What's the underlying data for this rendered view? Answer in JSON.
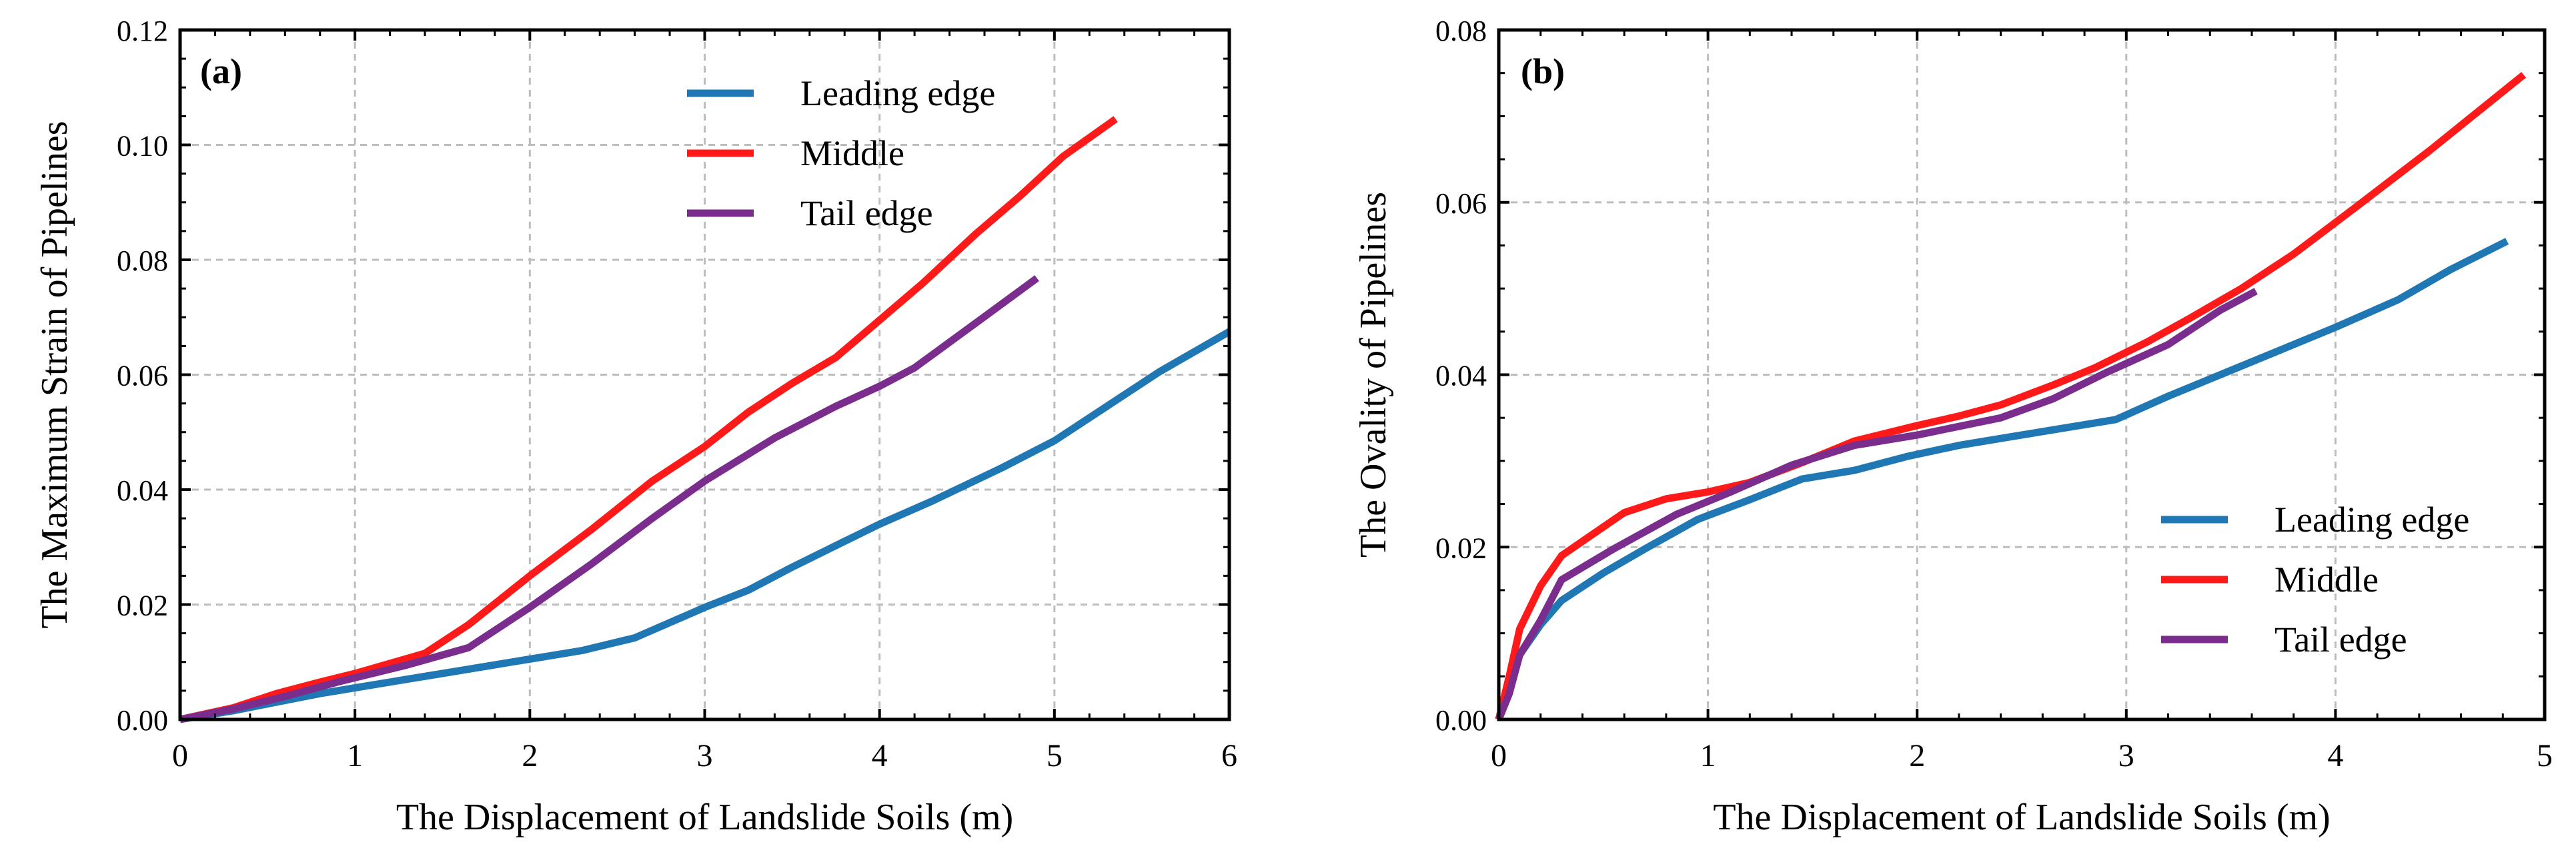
{
  "chart_data": [
    {
      "type": "line",
      "panel_label": "(a)",
      "xlabel": "The Displacement of Landslide Soils (m)",
      "ylabel": "The Maximum Strain of Pipelines",
      "xlim": [
        0,
        6
      ],
      "ylim": [
        0,
        0.12
      ],
      "xticks": [
        "0",
        "1",
        "2",
        "3",
        "4",
        "5",
        "6"
      ],
      "yticks": [
        "0.00",
        "0.02",
        "0.04",
        "0.06",
        "0.08",
        "0.10",
        "0.12"
      ],
      "grid": true,
      "legend_position": "top-center",
      "series": [
        {
          "name": "Leading edge",
          "color": "#1f77b4",
          "x": [
            0,
            0.3,
            0.55,
            0.8,
            1.0,
            1.3,
            1.6,
            2.0,
            2.3,
            2.6,
            3.0,
            3.25,
            3.5,
            3.8,
            4.0,
            4.3,
            4.7,
            5.0,
            5.3,
            5.6,
            6.0
          ],
          "y": [
            0,
            0.0015,
            0.003,
            0.0045,
            0.0055,
            0.007,
            0.0085,
            0.0105,
            0.012,
            0.0142,
            0.0195,
            0.0225,
            0.0265,
            0.031,
            0.034,
            0.038,
            0.0438,
            0.0485,
            0.0545,
            0.0605,
            0.0675
          ]
        },
        {
          "name": "Middle",
          "color": "#ff1a1a",
          "x": [
            0,
            0.3,
            0.55,
            0.8,
            1.0,
            1.4,
            1.65,
            2.0,
            2.35,
            2.7,
            3.0,
            3.25,
            3.5,
            3.75,
            4.0,
            4.25,
            4.55,
            4.8,
            5.05,
            5.35
          ],
          "y": [
            0,
            0.002,
            0.0045,
            0.0065,
            0.008,
            0.0115,
            0.0165,
            0.025,
            0.033,
            0.0415,
            0.0475,
            0.0535,
            0.0585,
            0.063,
            0.0695,
            0.076,
            0.0845,
            0.091,
            0.098,
            0.1045
          ]
        },
        {
          "name": "Tail edge",
          "color": "#7b2d8e",
          "x": [
            0,
            0.3,
            0.6,
            0.9,
            1.3,
            1.65,
            2.0,
            2.35,
            2.7,
            3.0,
            3.4,
            3.75,
            4.0,
            4.2,
            4.55,
            4.9
          ],
          "y": [
            0,
            0.0018,
            0.004,
            0.0065,
            0.0095,
            0.0125,
            0.0195,
            0.027,
            0.035,
            0.0415,
            0.049,
            0.0545,
            0.058,
            0.0612,
            0.069,
            0.0768
          ]
        }
      ]
    },
    {
      "type": "line",
      "panel_label": "(b)",
      "xlabel": "The Displacement of Landslide Soils (m)",
      "ylabel": "The Ovality of Pipelines",
      "xlim": [
        0,
        5
      ],
      "ylim": [
        0,
        0.08
      ],
      "xticks": [
        "0",
        "1",
        "2",
        "3",
        "4",
        "5"
      ],
      "yticks": [
        "0.00",
        "0.02",
        "0.04",
        "0.06",
        "0.08"
      ],
      "grid": true,
      "legend_position": "bottom-right",
      "series": [
        {
          "name": "Leading edge",
          "color": "#1f77b4",
          "x": [
            0,
            0.05,
            0.1,
            0.2,
            0.3,
            0.5,
            0.7,
            0.95,
            1.2,
            1.45,
            1.7,
            1.95,
            2.2,
            2.45,
            2.7,
            2.95,
            3.2,
            3.5,
            3.8,
            4.0,
            4.3,
            4.55,
            4.82
          ],
          "y": [
            0,
            0.004,
            0.0075,
            0.011,
            0.0138,
            0.017,
            0.0198,
            0.0232,
            0.0255,
            0.0279,
            0.0289,
            0.0305,
            0.0318,
            0.0328,
            0.0338,
            0.0348,
            0.0375,
            0.0405,
            0.0435,
            0.0455,
            0.0487,
            0.0522,
            0.0555
          ]
        },
        {
          "name": "Middle",
          "color": "#ff1a1a",
          "x": [
            0,
            0.05,
            0.1,
            0.2,
            0.3,
            0.45,
            0.6,
            0.8,
            1.0,
            1.2,
            1.45,
            1.7,
            2.0,
            2.2,
            2.4,
            2.65,
            2.85,
            3.1,
            3.3,
            3.55,
            3.8,
            4.1,
            4.45,
            4.9
          ],
          "y": [
            0,
            0.005,
            0.0105,
            0.0155,
            0.019,
            0.0215,
            0.024,
            0.0256,
            0.0264,
            0.0275,
            0.0298,
            0.0323,
            0.0341,
            0.0352,
            0.0365,
            0.0388,
            0.0408,
            0.0438,
            0.0465,
            0.05,
            0.054,
            0.0595,
            0.066,
            0.0748
          ]
        },
        {
          "name": "Tail edge",
          "color": "#7b2d8e",
          "x": [
            0,
            0.05,
            0.1,
            0.2,
            0.3,
            0.55,
            0.85,
            1.1,
            1.4,
            1.7,
            2.0,
            2.2,
            2.4,
            2.65,
            2.9,
            3.2,
            3.45,
            3.62
          ],
          "y": [
            0,
            0.003,
            0.0075,
            0.0115,
            0.0162,
            0.0198,
            0.0238,
            0.0263,
            0.0295,
            0.0318,
            0.033,
            0.034,
            0.035,
            0.0372,
            0.0402,
            0.0435,
            0.0475,
            0.0497
          ]
        }
      ]
    }
  ]
}
